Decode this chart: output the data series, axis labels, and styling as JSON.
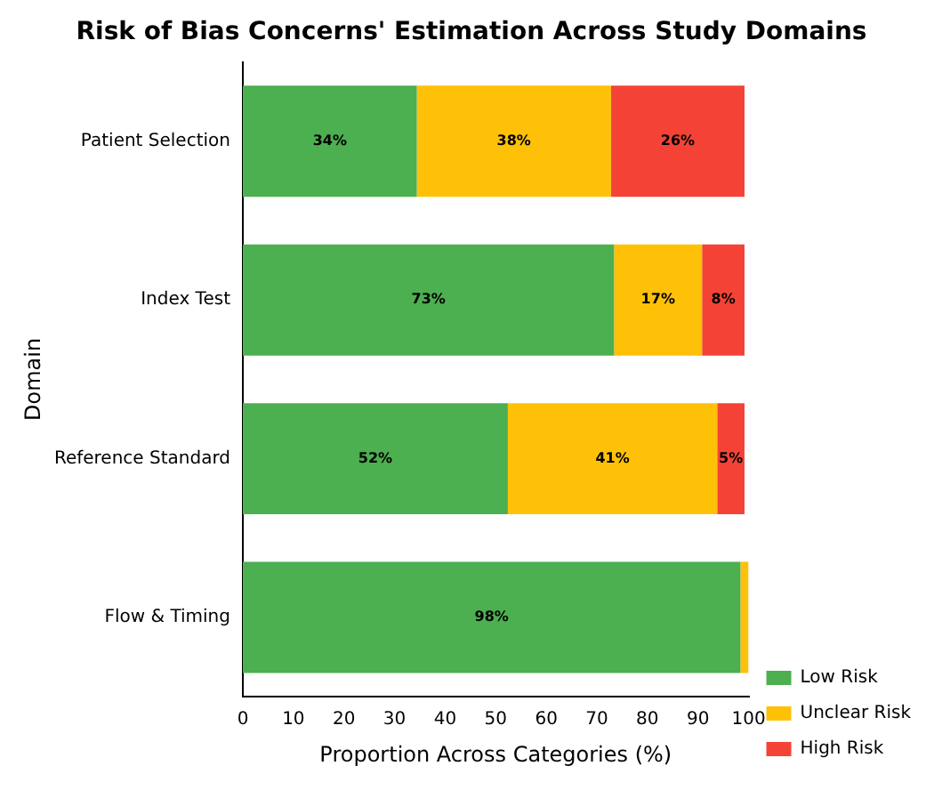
{
  "chart_data": {
    "type": "bar",
    "orientation": "horizontal",
    "stacked": true,
    "title": "Risk of Bias Concerns' Estimation Across Study Domains",
    "xlabel": "Proportion Across Categories (%)",
    "ylabel": "Domain",
    "categories": [
      "Patient Selection",
      "Index Test",
      "Reference Standard",
      "Flow & Timing"
    ],
    "series": [
      {
        "name": "Low Risk",
        "color": "#4caf50",
        "values": [
          34.4,
          73.4,
          52.4,
          98.4
        ],
        "value_labels": [
          "34%",
          "73%",
          "52%",
          "98%"
        ]
      },
      {
        "name": "Unclear Risk",
        "color": "#ffc107",
        "values": [
          38.4,
          17.4,
          41.4,
          1.6
        ],
        "value_labels": [
          "38%",
          "17%",
          "41%",
          null
        ]
      },
      {
        "name": "High Risk",
        "color": "#f44336",
        "values": [
          26.4,
          8.4,
          5.4,
          0
        ],
        "value_labels": [
          "26%",
          "8%",
          "5%",
          null
        ]
      }
    ],
    "xlim": [
      0,
      100
    ],
    "xticks": [
      0,
      10,
      20,
      30,
      40,
      50,
      60,
      70,
      80,
      90,
      100
    ],
    "grid": false,
    "legend": "bottom right"
  }
}
